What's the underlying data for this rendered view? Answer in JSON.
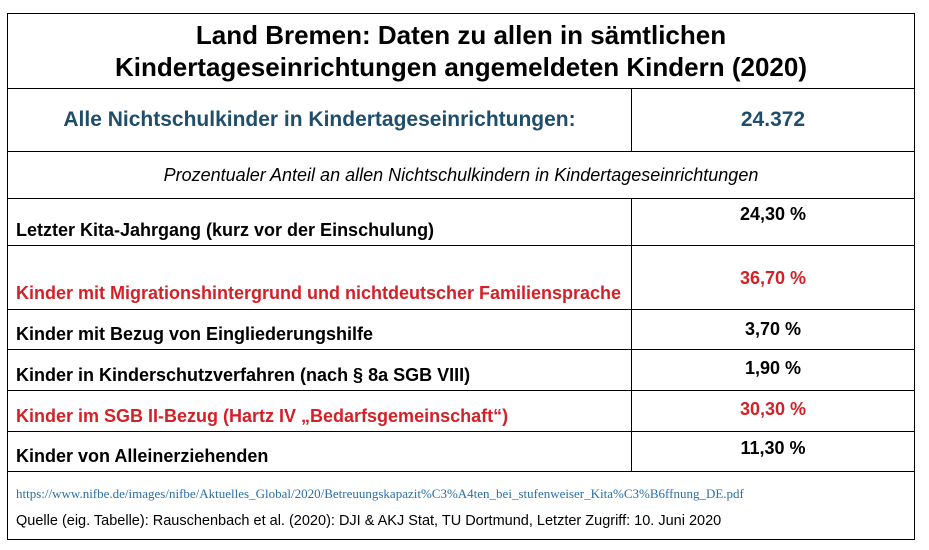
{
  "title": {
    "line1": "Land Bremen: Daten zu allen in sämtlichen",
    "line2": "Kindertageseinrichtungen angemeldeten Kindern (2020)"
  },
  "total": {
    "label": "Alle Nichtschulkinder in Kindertageseinrichtungen:",
    "value": "24.372"
  },
  "subheading": "Prozentualer Anteil an allen Nichtschulkindern in Kindertageseinrichtungen",
  "rows": [
    {
      "label": "Letzter Kita-Jahrgang (kurz vor der Einschulung)",
      "value": "24,30 %",
      "highlight": false
    },
    {
      "label": "Kinder mit Migrationshintergrund und nichtdeutscher Familiensprache",
      "value": "36,70 %",
      "highlight": true
    },
    {
      "label": "Kinder mit Bezug von Eingliederungshilfe",
      "value": "3,70 %",
      "highlight": false
    },
    {
      "label": "Kinder in Kinderschutzverfahren (nach § 8a SGB VIII)",
      "value": "1,90 %",
      "highlight": false
    },
    {
      "label": "Kinder im SGB II-Bezug (Hartz IV „Bedarfsgemeinschaft“)",
      "value": "30,30 %",
      "highlight": true
    },
    {
      "label": "Kinder von Alleinerziehenden",
      "value": "11,30 %",
      "highlight": false
    }
  ],
  "source": {
    "url": "https://www.nifbe.de/images/nifbe/Aktuelles_Global/2020/Betreuungskapazit%C3%A4ten_bei_stufenweiser_Kita%C3%B6ffnung_DE.pdf",
    "citation": "Quelle (eig. Tabelle): Rauschenbach et al. (2020): DJI & AKJ Stat, TU Dortmund, Letzter Zugriff: 10. Juni 2020"
  },
  "colors": {
    "highlight": "#d42027",
    "total": "#1f4e6b",
    "link": "#2a6fa8"
  }
}
